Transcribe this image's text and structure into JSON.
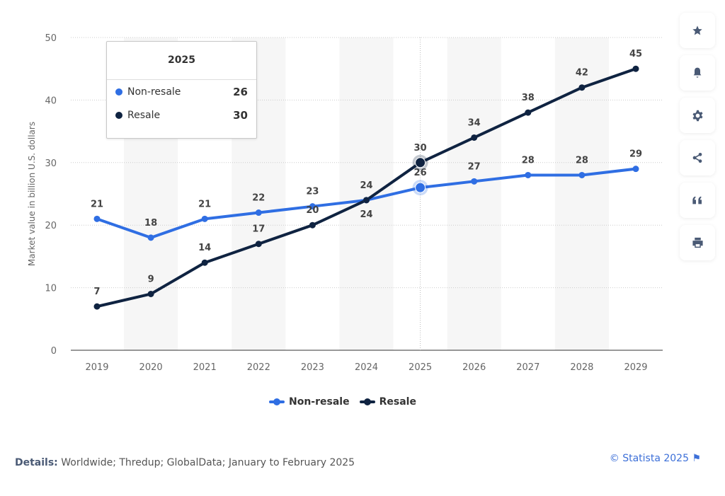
{
  "chart_data": {
    "type": "line",
    "categories": [
      "2019",
      "2020",
      "2021",
      "2022",
      "2023",
      "2024",
      "2025",
      "2026",
      "2027",
      "2028",
      "2029"
    ],
    "series": [
      {
        "name": "Non-resale",
        "color": "#2f6ee3",
        "values": [
          21,
          18,
          21,
          22,
          23,
          24,
          26,
          27,
          28,
          28,
          29
        ]
      },
      {
        "name": "Resale",
        "color": "#0f2341",
        "values": [
          7,
          9,
          14,
          17,
          20,
          24,
          30,
          34,
          38,
          42,
          45
        ]
      }
    ],
    "ylabel": "Market value in billion U.S. dollars",
    "yticks": [
      0,
      10,
      20,
      30,
      40,
      50
    ],
    "ylim": [
      0,
      50
    ],
    "grid": true,
    "legend": "bottom-center",
    "highlighted_category": "2025"
  },
  "tooltip": {
    "title": "2025",
    "rows": [
      {
        "label": "Non-resale",
        "value": "26",
        "color": "#2f6ee3"
      },
      {
        "label": "Resale",
        "value": "30",
        "color": "#0f2341"
      }
    ]
  },
  "legend": {
    "items": [
      "Non-resale",
      "Resale"
    ]
  },
  "sidebar": {
    "icons": [
      "star-icon",
      "bell-icon",
      "gear-icon",
      "share-icon",
      "quote-icon",
      "print-icon"
    ]
  },
  "footer": {
    "details_label": "Details:",
    "details_text": " Worldwide; Thredup; GlobalData; January to February 2025",
    "credit": "© Statista 2025 ⚑"
  }
}
